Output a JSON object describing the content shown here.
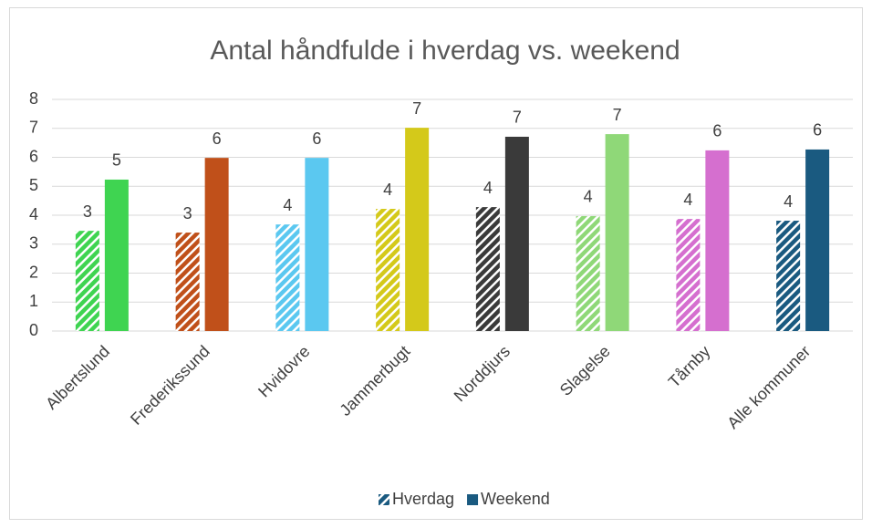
{
  "chart_data": {
    "type": "bar",
    "title": "Antal håndfulde i hverdag vs. weekend",
    "categories": [
      "Albertslund",
      "Frederikssund",
      "Hvidovre",
      "Jammerbugt",
      "Norddjurs",
      "Slagelse",
      "Tårnby",
      "Alle kommuner"
    ],
    "colors": [
      "#3fd451",
      "#c0501a",
      "#5bc8f0",
      "#d4c91a",
      "#3a3a3a",
      "#8fd878",
      "#d56fcf",
      "#1a5a80"
    ],
    "series": [
      {
        "name": "Hverdag",
        "color": "#1a5a80",
        "hatch": true,
        "values": [
          3.46,
          3.4,
          3.68,
          4.22,
          4.28,
          3.97,
          3.87,
          3.81
        ],
        "value_labels": [
          "3",
          "3",
          "4",
          "4",
          "4",
          "4",
          "4",
          "4"
        ]
      },
      {
        "name": "Weekend",
        "color": "#1a5a80",
        "hatch": false,
        "values": [
          5.23,
          5.98,
          5.98,
          7.02,
          6.71,
          6.8,
          6.24,
          6.27
        ],
        "value_labels": [
          "5",
          "6",
          "6",
          "7",
          "7",
          "7",
          "6",
          "6"
        ]
      }
    ],
    "ylim": [
      0,
      8
    ],
    "yticks": [
      0,
      1,
      2,
      3,
      4,
      5,
      6,
      7,
      8
    ],
    "grid": true,
    "legend": "bottom"
  }
}
